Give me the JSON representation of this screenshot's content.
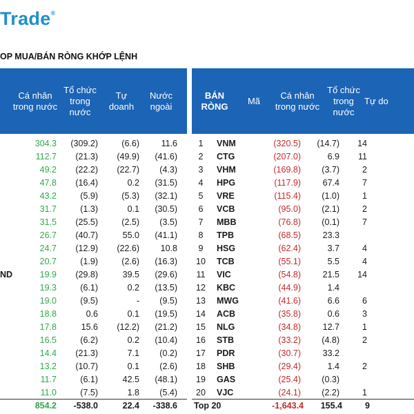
{
  "brand": {
    "name": "Trade",
    "mark": "®"
  },
  "title": "OP MUA/BÁN RÒNG KHỚP LỆNH",
  "left_table": {
    "headers": [
      "Cá nhân trong nước",
      "Tổ chức trong nước",
      "Tự doanh",
      "Nước ngoài"
    ],
    "row_label": "ND",
    "rows": [
      [
        "304.3",
        "(309.2)",
        "(6.6)",
        "11.6"
      ],
      [
        "112.7",
        "(21.3)",
        "(49.9)",
        "(41.6)"
      ],
      [
        "49.2",
        "(22.2)",
        "(22.7)",
        "(4.3)"
      ],
      [
        "47.8",
        "(16.4)",
        "0.2",
        "(31.5)"
      ],
      [
        "43.2",
        "(5.9)",
        "(5.3)",
        "(32.1)"
      ],
      [
        "31.7",
        "(1.3)",
        "0.1",
        "(30.5)"
      ],
      [
        "31.5",
        "(25.5)",
        "(2.5)",
        "(3.5)"
      ],
      [
        "26.7",
        "(40.7)",
        "55.0",
        "(41.1)"
      ],
      [
        "24.7",
        "(12.9)",
        "(22.6)",
        "10.8"
      ],
      [
        "20.7",
        "(1.9)",
        "(2.6)",
        "(16.3)"
      ],
      [
        "19.9",
        "(29.8)",
        "39.5",
        "(29.6)"
      ],
      [
        "19.3",
        "(6.1)",
        "0.2",
        "(13.5)"
      ],
      [
        "19.0",
        "(9.5)",
        "-",
        "(9.5)"
      ],
      [
        "18.8",
        "0.6",
        "0.1",
        "(19.5)"
      ],
      [
        "17.8",
        "15.6",
        "(12.2)",
        "(21.2)"
      ],
      [
        "16.5",
        "(6.2)",
        "0.2",
        "(10.4)"
      ],
      [
        "14.4",
        "(21.3)",
        "7.1",
        "(0.2)"
      ],
      [
        "13.2",
        "(10.7)",
        "0.1",
        "(2.6)"
      ],
      [
        "11.7",
        "(6.1)",
        "42.5",
        "(48.1)"
      ],
      [
        "11.0",
        "(7.5)",
        "1.8",
        "(5.4)"
      ]
    ],
    "total": [
      "854.2",
      "-538.0",
      "22.4",
      "-338.6"
    ]
  },
  "right_table": {
    "header_title": "BÁN RÒNG",
    "headers": [
      "Mã",
      "Cá nhân trong nước",
      "Tổ chức trong nước",
      "Tự do"
    ],
    "rows": [
      [
        "1",
        "VNM",
        "(320.5)",
        "(14.7)",
        "14"
      ],
      [
        "2",
        "CTG",
        "(207.0)",
        "6.9",
        "11"
      ],
      [
        "3",
        "VHM",
        "(169.8)",
        "(3.7)",
        "2"
      ],
      [
        "4",
        "HPG",
        "(117.9)",
        "67.4",
        "7"
      ],
      [
        "5",
        "VRE",
        "(115.4)",
        "(1.0)",
        "1"
      ],
      [
        "6",
        "VCB",
        "(95.0)",
        "(2.1)",
        "2"
      ],
      [
        "7",
        "MBB",
        "(76.8)",
        "(0.1)",
        "7"
      ],
      [
        "8",
        "TPB",
        "(68.5)",
        "23.3",
        ""
      ],
      [
        "9",
        "HSG",
        "(62.4)",
        "3.7",
        "4"
      ],
      [
        "10",
        "TCB",
        "(55.1)",
        "5.5",
        "4"
      ],
      [
        "11",
        "VIC",
        "(54.8)",
        "21.5",
        "14"
      ],
      [
        "12",
        "KBC",
        "(44.9)",
        "1.4",
        ""
      ],
      [
        "13",
        "MWG",
        "(41.6)",
        "6.6",
        "6"
      ],
      [
        "14",
        "ACB",
        "(35.8)",
        "0.6",
        "3"
      ],
      [
        "15",
        "NLG",
        "(34.8)",
        "12.7",
        "1"
      ],
      [
        "16",
        "STB",
        "(33.2)",
        "(4.8)",
        "2"
      ],
      [
        "17",
        "PDR",
        "(30.7)",
        "33.2",
        ""
      ],
      [
        "18",
        "SHB",
        "(29.4)",
        "1.4",
        "2"
      ],
      [
        "19",
        "GAS",
        "(25.4)",
        "(0.3)",
        ""
      ],
      [
        "20",
        "VJC",
        "(24.1)",
        "(2.2)",
        "1"
      ]
    ],
    "total": [
      "Top 20",
      "",
      "-1,643.4",
      "155.4",
      "9"
    ]
  },
  "colors": {
    "header_bg": "#1b64b6",
    "positive": "#2ea84a",
    "negative": "#c62828",
    "brand": "#1e90c8"
  }
}
